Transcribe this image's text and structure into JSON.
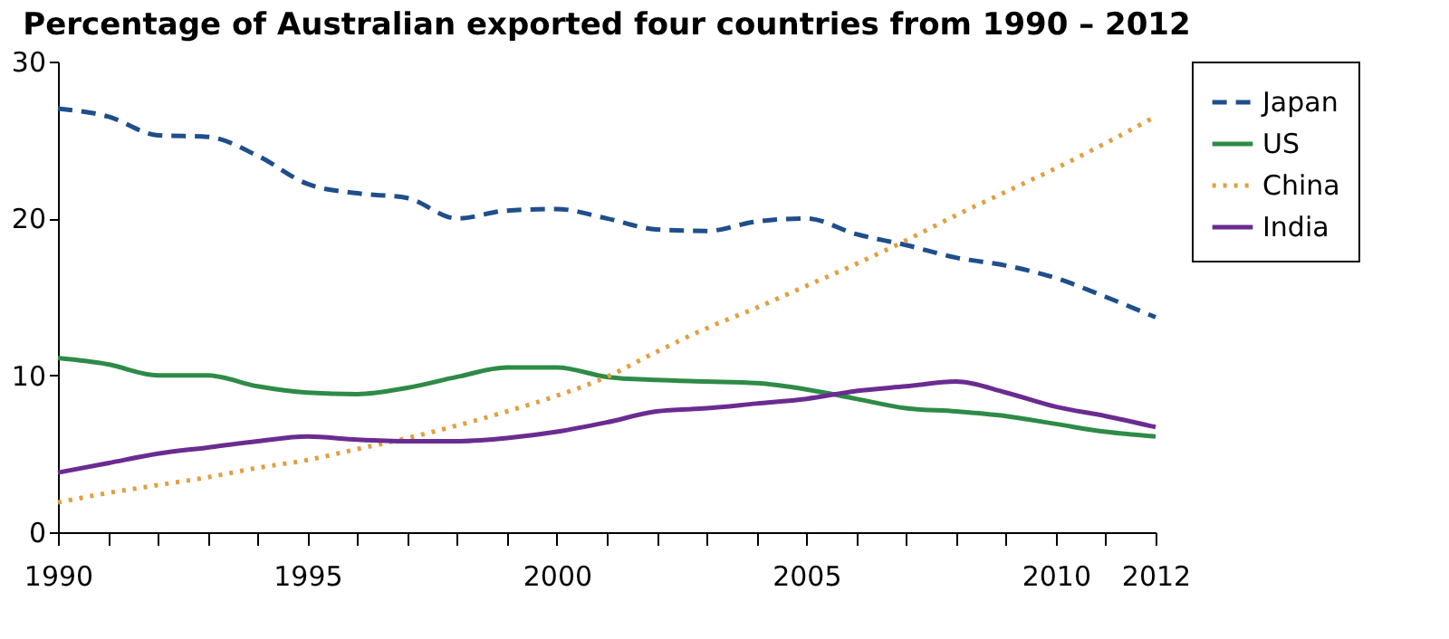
{
  "chart_data": {
    "type": "line",
    "title": "Percentage of Australian exported four countries from 1990 – 2012",
    "x": [
      1990,
      1991,
      1992,
      1993,
      1994,
      1995,
      1996,
      1997,
      1998,
      1999,
      2000,
      2001,
      2002,
      2003,
      2004,
      2005,
      2006,
      2007,
      2008,
      2009,
      2010,
      2011,
      2012
    ],
    "series": [
      {
        "name": "Japan",
        "color": "#1f4e8c",
        "line_style": "dashed",
        "values": [
          27,
          26.5,
          25.3,
          25.2,
          24,
          22.2,
          21.6,
          21.3,
          20,
          20.5,
          20.6,
          20,
          19.3,
          19.2,
          19.8,
          20,
          19,
          18.3,
          17.5,
          17,
          16.2,
          15,
          13.7
        ]
      },
      {
        "name": "US",
        "color": "#2e8b47",
        "line_style": "solid",
        "values": [
          11.1,
          10.7,
          10,
          10,
          9.3,
          8.9,
          8.8,
          9.2,
          9.9,
          10.5,
          10.5,
          9.9,
          9.7,
          9.6,
          9.5,
          9.1,
          8.5,
          7.9,
          7.7,
          7.4,
          6.9,
          6.4,
          6.1
        ]
      },
      {
        "name": "China",
        "color": "#e0a040",
        "line_style": "dotted",
        "values": [
          1.9,
          2.5,
          3.0,
          3.5,
          4.1,
          4.6,
          5.3,
          6.0,
          6.8,
          7.7,
          8.7,
          9.9,
          11.5,
          13,
          14.3,
          15.7,
          17.1,
          18.6,
          20.2,
          21.7,
          23.2,
          24.8,
          26.5
        ]
      },
      {
        "name": "India",
        "color": "#6a2c91",
        "line_style": "solid",
        "values": [
          3.8,
          4.4,
          5.0,
          5.4,
          5.8,
          6.1,
          5.9,
          5.8,
          5.8,
          6.0,
          6.4,
          7.0,
          7.7,
          7.9,
          8.2,
          8.5,
          9.0,
          9.3,
          9.6,
          8.9,
          8.0,
          7.4,
          6.7
        ]
      }
    ],
    "xlim": [
      1990,
      2012
    ],
    "xticks": [
      1990,
      {
        "value": 1991,
        "label": null
      },
      {
        "value": 1992,
        "label": null
      },
      {
        "value": 1993,
        "label": null
      },
      {
        "value": 1994,
        "label": null
      },
      1995,
      {
        "value": 1996,
        "label": null
      },
      {
        "value": 1997,
        "label": null
      },
      {
        "value": 1998,
        "label": null
      },
      {
        "value": 1999,
        "label": null
      },
      2000,
      {
        "value": 2001,
        "label": null
      },
      {
        "value": 2002,
        "label": null
      },
      {
        "value": 2003,
        "label": null
      },
      {
        "value": 2004,
        "label": null
      },
      2005,
      {
        "value": 2006,
        "label": null
      },
      {
        "value": 2007,
        "label": null
      },
      {
        "value": 2008,
        "label": null
      },
      {
        "value": 2009,
        "label": null
      },
      2010,
      {
        "value": 2011,
        "label": null
      },
      2012
    ],
    "ylim": [
      0,
      30
    ],
    "yticks": [
      0,
      10,
      20,
      30
    ],
    "grid": false,
    "legend": "top right",
    "marker": "none"
  }
}
